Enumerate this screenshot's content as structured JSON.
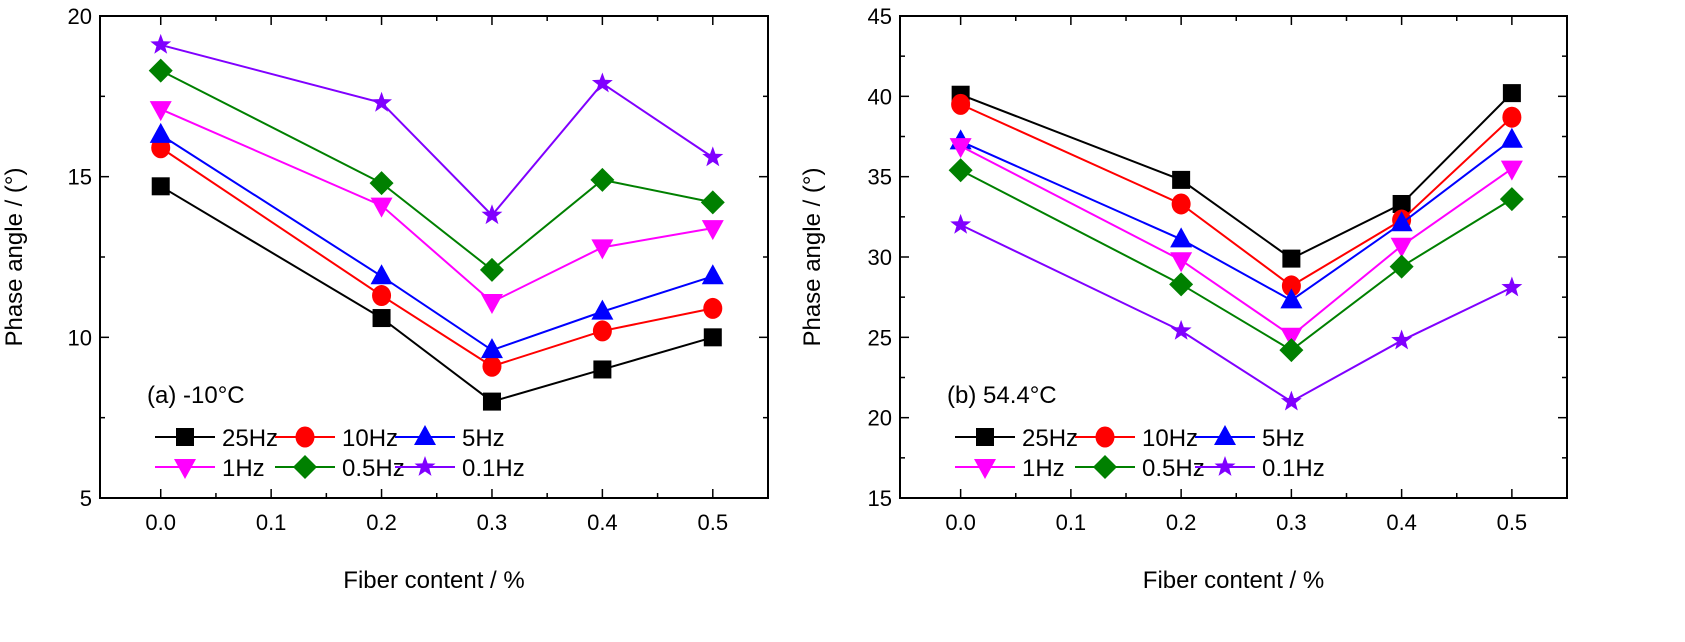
{
  "chart_data": [
    {
      "type": "line",
      "annotation": "(a)   -10°C",
      "xlabel": "Fiber content / %",
      "ylabel": "Phase angle / (°)",
      "xlim": [
        -0.055,
        0.55
      ],
      "ylim": [
        5,
        20
      ],
      "xticks": [
        "0.0",
        "0.1",
        "0.2",
        "0.3",
        "0.4",
        "0.5"
      ],
      "yticks": [
        "5",
        "10",
        "15",
        "20"
      ],
      "x": [
        0.0,
        0.2,
        0.3,
        0.4,
        0.5
      ],
      "legend_position": "bottom-left",
      "series": [
        {
          "name": "25Hz",
          "color": "#000000",
          "marker": "square",
          "values": [
            14.7,
            10.6,
            8.0,
            9.0,
            10.0
          ]
        },
        {
          "name": "10Hz",
          "color": "#ff0000",
          "marker": "circle",
          "values": [
            15.9,
            11.3,
            9.1,
            10.2,
            10.9
          ]
        },
        {
          "name": "5Hz",
          "color": "#0000ff",
          "marker": "triangle-up",
          "values": [
            16.3,
            11.9,
            9.6,
            10.8,
            11.9
          ]
        },
        {
          "name": "1Hz",
          "color": "#ff00ff",
          "marker": "triangle-down",
          "values": [
            17.1,
            14.1,
            11.1,
            12.8,
            13.4
          ]
        },
        {
          "name": "0.5Hz",
          "color": "#008000",
          "marker": "diamond",
          "values": [
            18.3,
            14.8,
            12.1,
            14.9,
            14.2
          ]
        },
        {
          "name": "0.1Hz",
          "color": "#8000ff",
          "marker": "star",
          "values": [
            19.1,
            17.3,
            13.8,
            17.9,
            15.6
          ]
        }
      ]
    },
    {
      "type": "line",
      "annotation": "(b)   54.4°C",
      "xlabel": "Fiber content / %",
      "ylabel": "Phase angle / (°)",
      "xlim": [
        -0.055,
        0.55
      ],
      "ylim": [
        15,
        45
      ],
      "xticks": [
        "0.0",
        "0.1",
        "0.2",
        "0.3",
        "0.4",
        "0.5"
      ],
      "yticks": [
        "15",
        "20",
        "25",
        "30",
        "35",
        "40",
        "45"
      ],
      "x": [
        0.0,
        0.2,
        0.3,
        0.4,
        0.5
      ],
      "legend_position": "bottom-left",
      "series": [
        {
          "name": "25Hz",
          "color": "#000000",
          "marker": "square",
          "values": [
            40.1,
            34.8,
            29.9,
            33.3,
            40.2
          ]
        },
        {
          "name": "10Hz",
          "color": "#ff0000",
          "marker": "circle",
          "values": [
            39.5,
            33.3,
            28.2,
            32.3,
            38.7
          ]
        },
        {
          "name": "5Hz",
          "color": "#0000ff",
          "marker": "triangle-up",
          "values": [
            37.2,
            31.1,
            27.3,
            32.1,
            37.3
          ]
        },
        {
          "name": "1Hz",
          "color": "#ff00ff",
          "marker": "triangle-down",
          "values": [
            36.9,
            29.8,
            25.1,
            30.7,
            35.5
          ]
        },
        {
          "name": "0.5Hz",
          "color": "#008000",
          "marker": "diamond",
          "values": [
            35.4,
            28.3,
            24.2,
            29.4,
            33.6
          ]
        },
        {
          "name": "0.1Hz",
          "color": "#8000ff",
          "marker": "star",
          "values": [
            32.0,
            25.4,
            21.0,
            24.8,
            28.1
          ]
        }
      ]
    }
  ]
}
